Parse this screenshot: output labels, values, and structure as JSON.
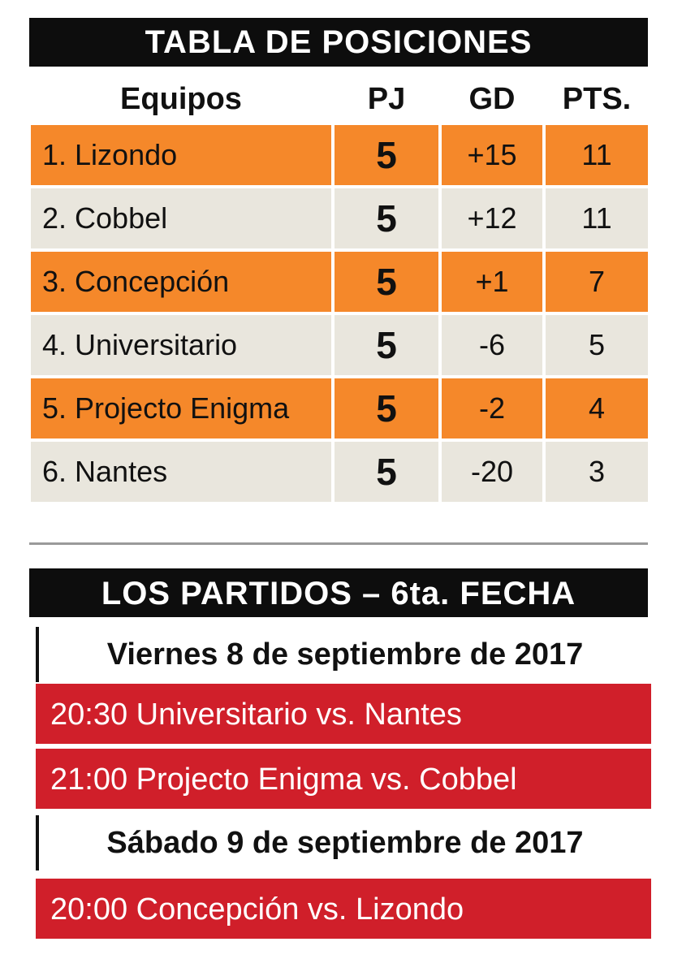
{
  "standings": {
    "title": "TABLA DE POSICIONES",
    "columns": {
      "team": "Equipos",
      "pj": "PJ",
      "gd": "GD",
      "pts": "PTS."
    },
    "row_colors": {
      "odd": "#f5882a",
      "even": "#e9e6dd",
      "cell_border": "#ffffff"
    },
    "rows": [
      {
        "team": "1. Lizondo",
        "pj": "5",
        "gd": "+15",
        "pts": "11"
      },
      {
        "team": "2. Cobbel",
        "pj": "5",
        "gd": "+12",
        "pts": "11"
      },
      {
        "team": "3. Concepción",
        "pj": "5",
        "gd": "+1",
        "pts": "7"
      },
      {
        "team": "4. Universitario",
        "pj": "5",
        "gd": "-6",
        "pts": "5"
      },
      {
        "team": "5. Projecto Enigma",
        "pj": "5",
        "gd": "-2",
        "pts": "4"
      },
      {
        "team": "6. Nantes",
        "pj": "5",
        "gd": "-20",
        "pts": "3"
      }
    ]
  },
  "matches": {
    "title": "LOS PARTIDOS – 6ta. FECHA",
    "accent_color": "#d01f2a",
    "days": [
      {
        "date": "Viernes 8 de septiembre de 2017",
        "games": [
          "20:30 Universitario vs. Nantes",
          "21:00 Projecto Enigma vs. Cobbel"
        ]
      },
      {
        "date": "Sábado 9 de septiembre de 2017",
        "games": [
          "20:00 Concepción vs. Lizondo"
        ]
      }
    ]
  }
}
